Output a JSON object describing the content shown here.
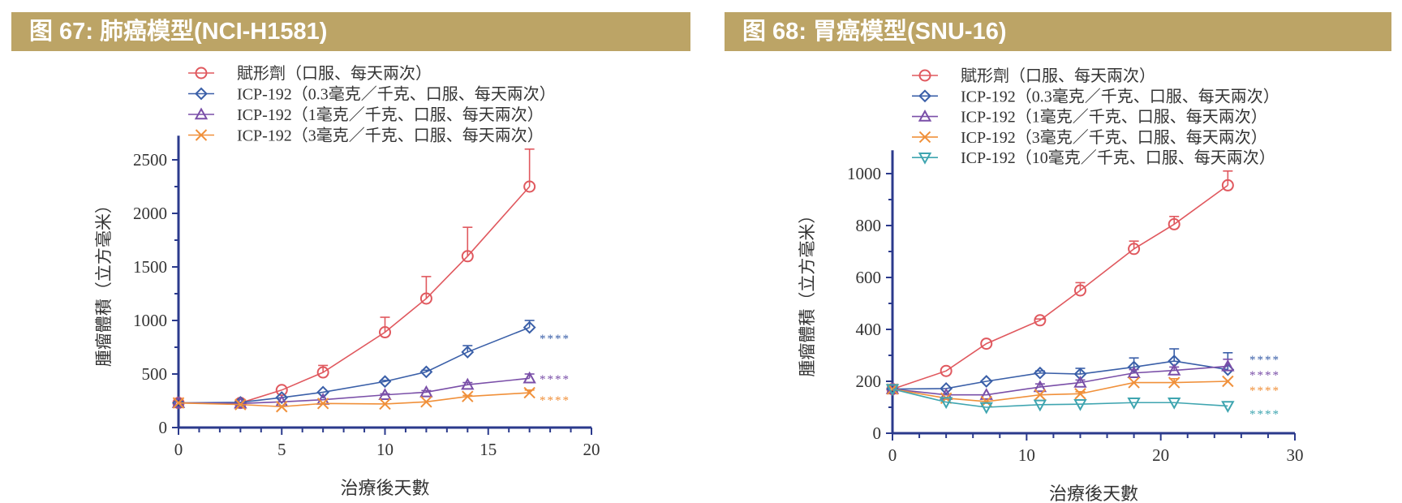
{
  "figures": [
    {
      "title": "图  67: 肺癌模型(NCI-H1581)"
    },
    {
      "title": "图  68: 胃癌模型(SNU-16)"
    }
  ],
  "chart_data": [
    {
      "type": "line",
      "xlabel": "治療後天數",
      "ylabel": "腫瘤體積（立方毫米）",
      "xlim": [
        0,
        20
      ],
      "ylim": [
        0,
        2500
      ],
      "xticks": [
        0,
        5,
        10,
        15,
        20
      ],
      "yticks": [
        0,
        500,
        1000,
        1500,
        2000,
        2500
      ],
      "legend_position": "top",
      "x": [
        0,
        3,
        5,
        7,
        10,
        12,
        14,
        17
      ],
      "series": [
        {
          "name": "賦形劑（口服、每天兩次）",
          "marker": "circle",
          "color": "#e0585e",
          "values": [
            230,
            230,
            350,
            515,
            890,
            1205,
            1600,
            2250
          ],
          "error_upper": [
            230,
            230,
            350,
            580,
            1030,
            1410,
            1870,
            2600
          ],
          "significance": ""
        },
        {
          "name": "ICP-192（0.3毫克／千克、口服、每天兩次）",
          "marker": "diamond",
          "color": "#3a5fa8",
          "values": [
            230,
            235,
            280,
            330,
            430,
            520,
            705,
            935
          ],
          "error_upper": [
            230,
            235,
            280,
            330,
            440,
            535,
            765,
            1000
          ],
          "significance": "****"
        },
        {
          "name": "ICP-192（1毫克／千克、口服、每天兩次）",
          "marker": "triangle-up",
          "color": "#7a4fa8",
          "values": [
            230,
            225,
            240,
            260,
            305,
            330,
            400,
            460
          ],
          "error_upper": [
            230,
            225,
            240,
            260,
            315,
            345,
            420,
            500
          ],
          "significance": "****"
        },
        {
          "name": "ICP-192（3毫克／千克、口服、每天兩次）",
          "marker": "x",
          "color": "#f0903a",
          "values": [
            230,
            215,
            195,
            225,
            220,
            240,
            290,
            325
          ],
          "error_upper": [
            230,
            215,
            195,
            225,
            220,
            240,
            300,
            350
          ],
          "significance": "****"
        }
      ]
    },
    {
      "type": "line",
      "xlabel": "治療後天數",
      "ylabel": "腫瘤體積（立方毫米）",
      "xlim": [
        0,
        30
      ],
      "ylim": [
        0,
        1000
      ],
      "xticks": [
        0,
        10,
        20,
        30
      ],
      "yticks": [
        0,
        200,
        400,
        600,
        800,
        1000
      ],
      "legend_position": "top",
      "x": [
        0,
        4,
        7,
        11,
        14,
        18,
        21,
        25
      ],
      "series": [
        {
          "name": "賦形劑（口服、每天兩次）",
          "marker": "circle",
          "color": "#e0585e",
          "values": [
            170,
            240,
            345,
            435,
            550,
            710,
            805,
            955
          ],
          "error_upper": [
            170,
            240,
            345,
            440,
            580,
            740,
            835,
            1010
          ],
          "significance": ""
        },
        {
          "name": "ICP-192（0.3毫克／千克、口服、每天兩次）",
          "marker": "diamond",
          "color": "#3a5fa8",
          "values": [
            170,
            172,
            200,
            232,
            228,
            255,
            278,
            245
          ],
          "error_upper": [
            170,
            172,
            200,
            240,
            250,
            290,
            325,
            310
          ],
          "significance": "****"
        },
        {
          "name": "ICP-192（1毫克／千克、口服、每天兩次）",
          "marker": "triangle-up",
          "color": "#7a4fa8",
          "values": [
            170,
            148,
            148,
            178,
            195,
            232,
            242,
            258
          ],
          "error_upper": [
            170,
            148,
            148,
            190,
            205,
            245,
            255,
            285
          ],
          "significance": "****"
        },
        {
          "name": "ICP-192（3毫克／千克、口服、每天兩次）",
          "marker": "x",
          "color": "#f0903a",
          "values": [
            170,
            135,
            122,
            148,
            152,
            195,
            195,
            200
          ],
          "error_upper": [
            170,
            135,
            122,
            148,
            160,
            195,
            210,
            200
          ],
          "significance": "****"
        },
        {
          "name": "ICP-192（10毫克／千克、口服、每天兩次）",
          "marker": "triangle-down",
          "color": "#3fa5b0",
          "values": [
            170,
            120,
            100,
            110,
            112,
            118,
            118,
            105
          ],
          "error_upper": [
            170,
            120,
            100,
            110,
            112,
            118,
            118,
            105
          ],
          "significance": "****"
        }
      ]
    }
  ]
}
